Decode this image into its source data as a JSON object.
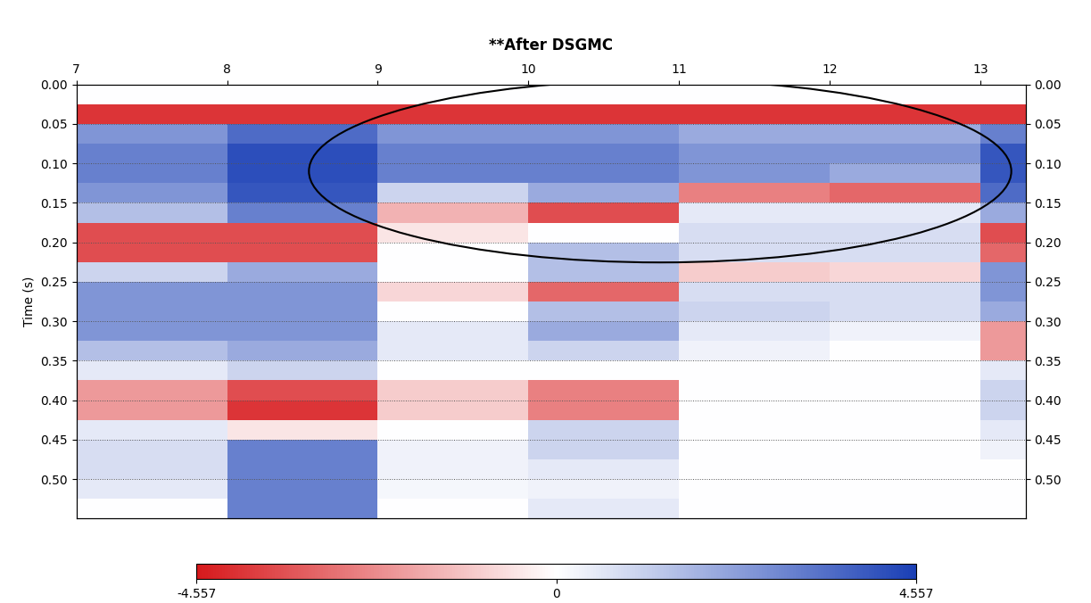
{
  "chart_data": {
    "type": "heatmap",
    "title": "**After DSGMC",
    "y_label": "Time (s)",
    "x_edges": [
      7,
      8,
      9,
      10,
      11,
      12,
      13,
      13.3
    ],
    "y_edges": [
      0.0,
      0.025,
      0.05,
      0.075,
      0.1,
      0.125,
      0.15,
      0.175,
      0.2,
      0.225,
      0.25,
      0.275,
      0.3,
      0.325,
      0.35,
      0.375,
      0.4,
      0.425,
      0.45,
      0.475,
      0.5,
      0.525,
      0.55
    ],
    "cells": [
      [
        0,
        0,
        0,
        0,
        0,
        0,
        0
      ],
      [
        -4,
        -4,
        -4,
        -4,
        -4,
        -4,
        -4
      ],
      [
        2.5,
        3.5,
        2.5,
        2.5,
        2,
        2,
        3
      ],
      [
        3,
        4.2,
        3,
        3,
        2.5,
        2.5,
        4
      ],
      [
        3,
        4.2,
        3,
        3,
        2.5,
        2,
        4
      ],
      [
        2.5,
        4,
        1,
        2,
        -2.5,
        -3,
        3.5
      ],
      [
        1.5,
        3,
        -1.5,
        -3.5,
        0.5,
        0.5,
        2
      ],
      [
        -3.5,
        -3.5,
        -0.5,
        0,
        0.8,
        0.8,
        -3.5
      ],
      [
        -3.5,
        -3.5,
        0,
        1.5,
        0.8,
        0.8,
        -3
      ],
      [
        1,
        2,
        0,
        1.5,
        -1,
        -0.8,
        2.5
      ],
      [
        2.5,
        2.5,
        -0.8,
        -3,
        0.8,
        0.8,
        2.5
      ],
      [
        2.5,
        2.5,
        0,
        1.5,
        1,
        0.8,
        2
      ],
      [
        2.5,
        2.5,
        0.5,
        2,
        0.5,
        0.3,
        -2
      ],
      [
        1.5,
        2,
        0.5,
        1,
        0.3,
        0,
        -2
      ],
      [
        0.5,
        1,
        0,
        0,
        0,
        0,
        0.5
      ],
      [
        -2,
        -3.5,
        -1,
        -2.5,
        0,
        0,
        1
      ],
      [
        -2,
        -4,
        -1,
        -2.5,
        0,
        0,
        1
      ],
      [
        0.5,
        -0.5,
        0,
        1,
        0,
        0,
        0.5
      ],
      [
        0.8,
        3,
        0.3,
        1,
        0,
        0,
        0.3
      ],
      [
        0.8,
        3,
        0.3,
        0.5,
        0,
        0,
        0
      ],
      [
        0.5,
        3,
        0.2,
        0.3,
        0,
        0,
        0
      ],
      [
        0,
        3,
        0,
        0.5,
        0,
        0,
        0
      ]
    ],
    "xlim": [
      7,
      13.3
    ],
    "xticks": [
      7,
      8,
      9,
      10,
      11,
      12,
      13
    ],
    "ylim": [
      0.55,
      0.0
    ],
    "yticks": [
      {
        "value": 0.0,
        "label": "0.00"
      },
      {
        "value": 0.05,
        "label": "0.05"
      },
      {
        "value": 0.1,
        "label": "0.10"
      },
      {
        "value": 0.15,
        "label": "0.15"
      },
      {
        "value": 0.2,
        "label": "0.20"
      },
      {
        "value": 0.25,
        "label": "0.25"
      },
      {
        "value": 0.3,
        "label": "0.30"
      },
      {
        "value": 0.35,
        "label": "0.35"
      },
      {
        "value": 0.4,
        "label": "0.40"
      },
      {
        "value": 0.45,
        "label": "0.45"
      },
      {
        "value": 0.5,
        "label": "0.50"
      }
    ],
    "colors": [
      "#d7191c",
      "#ffffff",
      "#1a3fb5"
    ],
    "grid": "y",
    "colorbar": {
      "range": [
        -4.557,
        4.557
      ],
      "ticks": [
        {
          "value": -4.557,
          "label": "-4.557"
        },
        0,
        {
          "value": 4.557,
          "label": "4.557"
        }
      ]
    }
  }
}
